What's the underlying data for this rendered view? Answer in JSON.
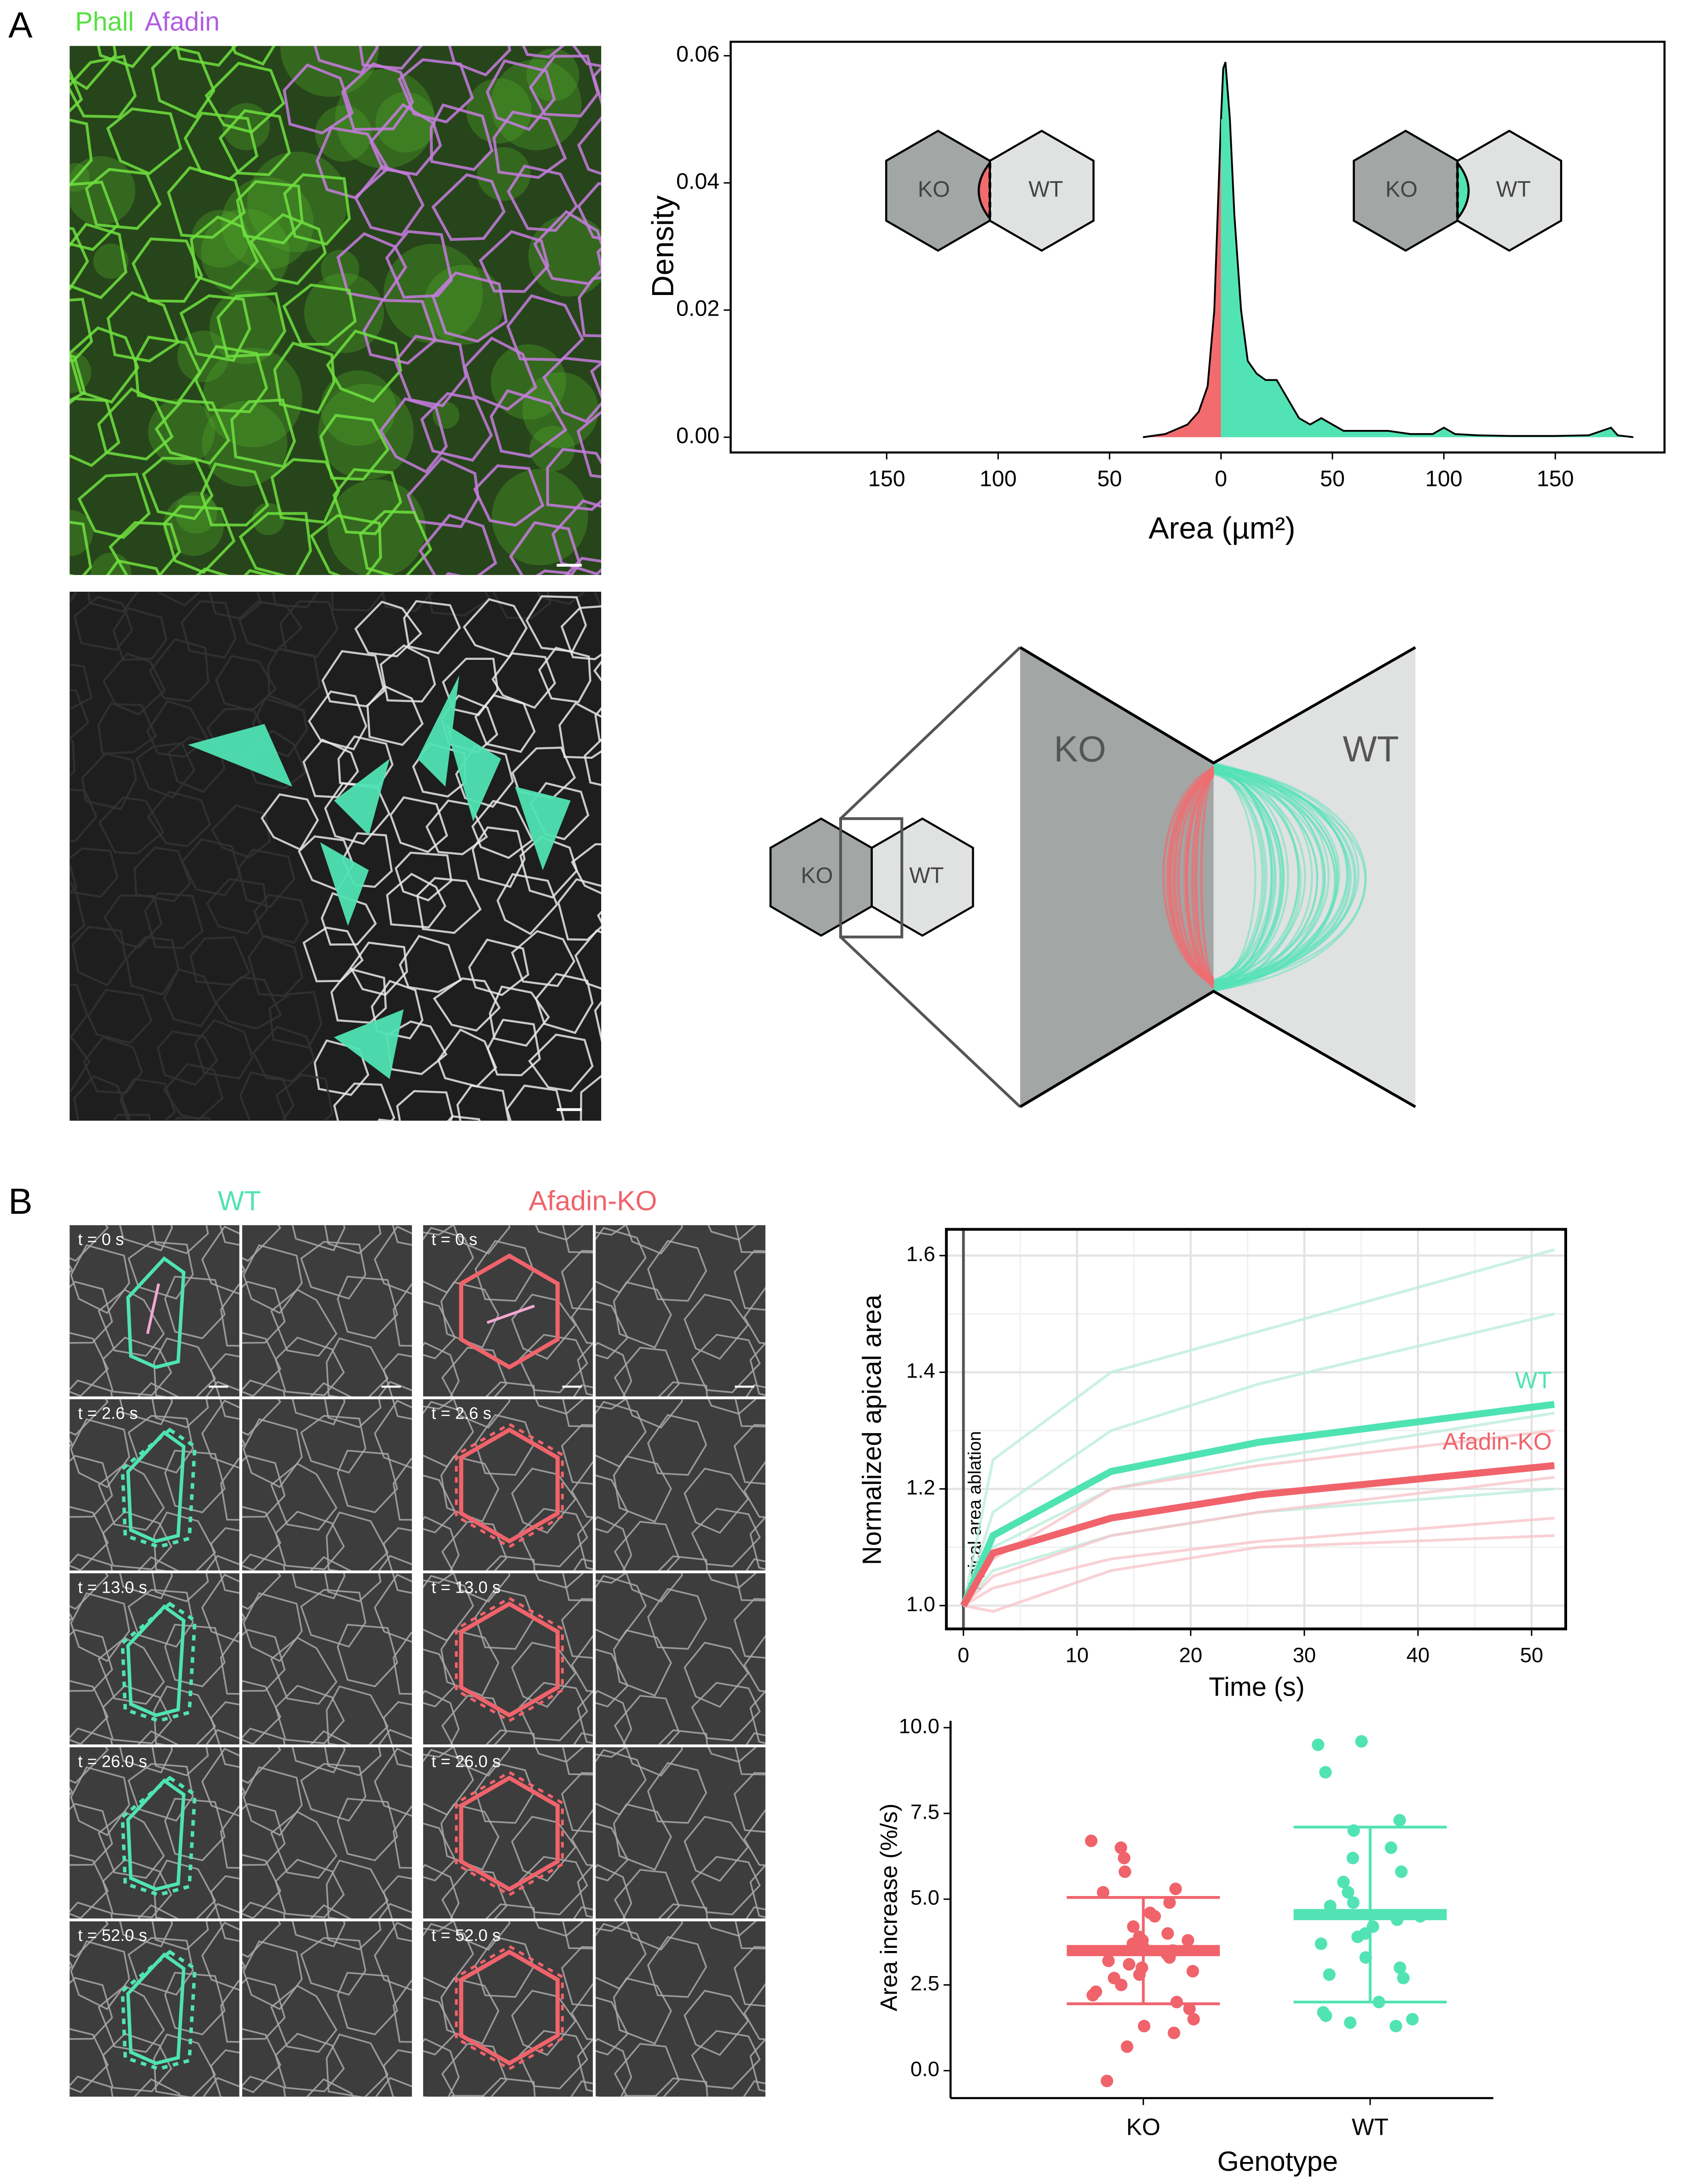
{
  "panel_labels": [
    "A",
    "B"
  ],
  "images": {
    "channels": [
      "Phall",
      "Afadin"
    ],
    "wt_title": "WT",
    "ko_title": "Afadin-KO",
    "timepoints": [
      "t = 0 s",
      "t = 2.6 s",
      "t = 13.0 s",
      "t = 26.0 s",
      "t = 52.0 s"
    ]
  },
  "schematics": {
    "density_left": [
      "KO",
      "WT"
    ],
    "density_right": [
      "KO",
      "WT"
    ],
    "zoom_small": [
      "KO",
      "WT"
    ],
    "zoom_large": [
      "KO",
      "WT"
    ]
  },
  "chart_data": [
    {
      "type": "area",
      "x_label": "Area (µm²)",
      "y_label": "Density",
      "xlim": [
        -220,
        199
      ],
      "ylim": [
        -0.0024,
        0.0622
      ],
      "xticks": [
        {
          "value": -150,
          "label": "150"
        },
        {
          "value": -100,
          "label": "100"
        },
        {
          "value": -50,
          "label": "50"
        },
        0,
        50,
        100,
        150
      ],
      "yticks": [
        {
          "value": 0,
          "label": "0.00"
        },
        0.02,
        0.04,
        0.06
      ],
      "series": [
        {
          "color": "#f26b6f",
          "x": [
            -35,
            -25,
            -15,
            -10,
            -6,
            -3,
            0
          ],
          "values": [
            0,
            0.0005,
            0.002,
            0.004,
            0.008,
            0.02,
            0.05
          ]
        },
        {
          "color": "#52e3b5",
          "x": [
            0,
            1,
            2,
            4,
            6,
            9,
            12,
            16,
            20,
            25,
            30,
            35,
            40,
            45,
            55,
            65,
            75,
            85,
            95,
            100,
            105,
            115,
            130,
            150,
            165,
            175,
            178,
            185
          ],
          "values": [
            0.05,
            0.058,
            0.059,
            0.05,
            0.035,
            0.02,
            0.012,
            0.01,
            0.009,
            0.009,
            0.006,
            0.003,
            0.002,
            0.003,
            0.001,
            0.001,
            0.001,
            0.0005,
            0.0005,
            0.0015,
            0.0005,
            0.0003,
            0.0002,
            0.0002,
            0.0003,
            0.0015,
            0.0003,
            0
          ]
        }
      ]
    },
    {
      "type": "line",
      "x_label": "Time (s)",
      "y_label": "Normalized apical area",
      "annotation": "Apical area ablation",
      "x": [
        0,
        2.6,
        13,
        26,
        52
      ],
      "xlim": [
        -1.5,
        53
      ],
      "ylim": [
        0.96,
        1.645
      ],
      "xticks": [
        0,
        10,
        20,
        30,
        40,
        50
      ],
      "yticks": [
        {
          "value": 1,
          "label": "1.0"
        },
        1.2,
        1.4,
        1.6
      ],
      "grid": true,
      "series": [
        {
          "color": "#bdeedd",
          "values": [
            1,
            1.25,
            1.4,
            1.47,
            1.61
          ]
        },
        {
          "color": "#bdeedd",
          "values": [
            1,
            1.16,
            1.3,
            1.38,
            1.5
          ]
        },
        {
          "color": "#bdeedd",
          "values": [
            1,
            1.1,
            1.2,
            1.25,
            1.33
          ]
        },
        {
          "color": "#bdeedd",
          "values": [
            1,
            1.06,
            1.12,
            1.16,
            1.2
          ]
        },
        {
          "color": "#f7c6cc",
          "values": [
            1,
            1.08,
            1.2,
            1.24,
            1.3
          ]
        },
        {
          "color": "#f7c6cc",
          "values": [
            1,
            1.05,
            1.12,
            1.16,
            1.22
          ]
        },
        {
          "color": "#f7c6cc",
          "values": [
            1,
            1.03,
            1.08,
            1.11,
            1.15
          ]
        },
        {
          "color": "#f7c6cc",
          "values": [
            1,
            0.99,
            1.06,
            1.1,
            1.12
          ]
        },
        {
          "name": "WT",
          "color": "#4fe3b3",
          "values": [
            1,
            1.12,
            1.23,
            1.28,
            1.345
          ]
        },
        {
          "name": "Afadin-KO",
          "color": "#f0636b",
          "values": [
            1,
            1.09,
            1.15,
            1.19,
            1.24
          ]
        }
      ]
    },
    {
      "type": "strip",
      "x_label": "Genotype",
      "y_label": "Area increase (%/s)",
      "categories": [
        "KO",
        "WT"
      ],
      "ylim": [
        -0.8,
        10.2
      ],
      "yticks": [
        {
          "value": 0,
          "label": "0.0"
        },
        2.5,
        {
          "value": 5,
          "label": "5.0"
        },
        7.5,
        {
          "value": 10,
          "label": "10.0"
        }
      ],
      "series": [
        {
          "color": "#f0636b",
          "mean": 3.5,
          "upper": 5.05,
          "lower": 1.95,
          "values": [
            6.7,
            6.5,
            6.2,
            5.8,
            5.3,
            5.2,
            4.9,
            4.6,
            4.5,
            4.2,
            4.0,
            3.9,
            3.8,
            3.8,
            3.7,
            3.6,
            3.5,
            3.5,
            3.4,
            3.3,
            3.2,
            3.1,
            3.0,
            2.9,
            2.8,
            2.7,
            2.5,
            2.3,
            2.2,
            2.0,
            1.8,
            1.5,
            1.3,
            1.1,
            0.7,
            -0.3
          ]
        },
        {
          "color": "#52e3b5",
          "mean": 4.55,
          "upper": 7.1,
          "lower": 2.0,
          "values": [
            9.5,
            9.6,
            8.7,
            7.3,
            7.0,
            6.2,
            5.8,
            5.5,
            5.2,
            4.9,
            4.8,
            4.5,
            4.4,
            4.2,
            4.0,
            3.7,
            3.3,
            3.0,
            2.8,
            2.7,
            2.0,
            1.7,
            1.6,
            1.5,
            1.4,
            1.3,
            3.9,
            6.5
          ]
        }
      ]
    }
  ]
}
